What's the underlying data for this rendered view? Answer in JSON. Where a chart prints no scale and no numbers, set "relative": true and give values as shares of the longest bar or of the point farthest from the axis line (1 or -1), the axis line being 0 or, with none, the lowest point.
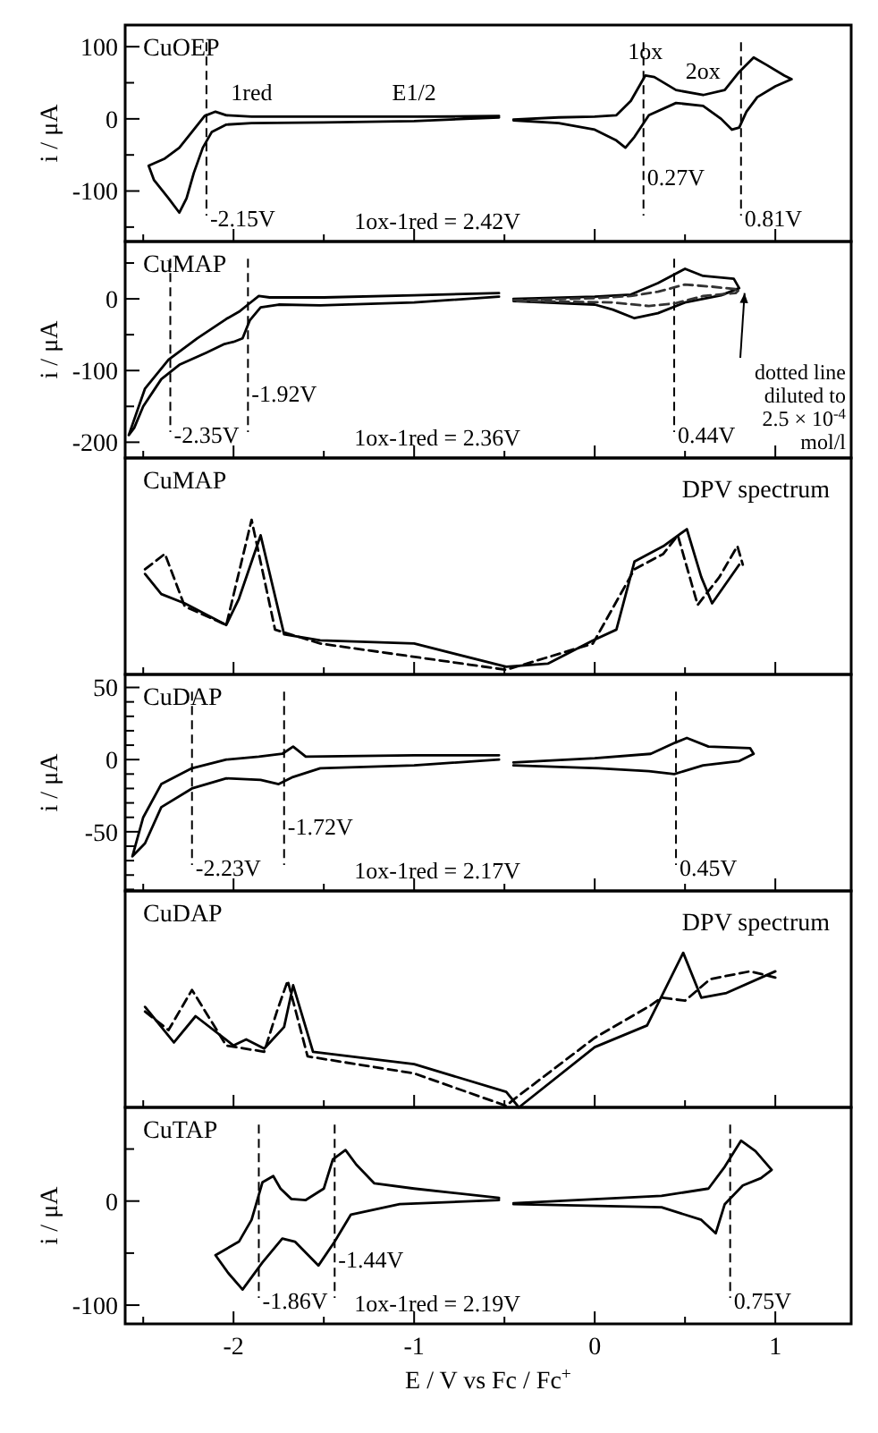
{
  "chart_data": [
    {
      "type": "line",
      "title": "CuOEP",
      "ylabel": "i / μA",
      "xlim": [
        -2.6,
        1.42
      ],
      "ylim": [
        -170,
        130
      ],
      "tick_labels": "y",
      "xticks": [
        {
          "value": -2.5,
          "label": null
        },
        -2,
        {
          "value": -1.5,
          "label": null
        },
        -1,
        {
          "value": -0.5,
          "label": null
        },
        0,
        {
          "value": 0.5,
          "label": null
        },
        1
      ],
      "yticks": [
        {
          "value": -150,
          "label": null
        },
        -100,
        {
          "value": -50,
          "label": null
        },
        0,
        {
          "value": 50,
          "label": null
        },
        100
      ],
      "series": [
        {
          "color": "#000000",
          "line_style": "solid",
          "x": [
            -0.53,
            -1.0,
            -1.5,
            -1.9,
            -2.04,
            -2.1,
            -2.16,
            -2.22,
            -2.3,
            -2.38,
            -2.47,
            -2.44,
            -2.36,
            -2.3,
            -2.26,
            -2.22,
            -2.17,
            -2.12,
            -2.04,
            -1.9,
            -1.5,
            -1.0,
            -0.53,
            -0.49,
            -0.45,
            -0.2,
            0.0,
            0.12,
            0.2,
            0.28,
            0.33,
            0.45,
            0.6,
            0.72,
            0.8,
            0.88,
            0.95,
            1.05,
            1.09,
            1.0,
            0.9,
            0.84,
            0.8,
            0.76,
            0.7,
            0.6,
            0.45,
            0.3,
            0.22,
            0.17,
            0.12,
            0.0,
            -0.2,
            -0.45
          ],
          "values": [
            4,
            3,
            3,
            3,
            5,
            10,
            4,
            -15,
            -40,
            -55,
            -65,
            -85,
            -110,
            -130,
            -110,
            -75,
            -40,
            -18,
            -8,
            -6,
            -5,
            -3,
            2,
            null,
            -1,
            2,
            3,
            5,
            25,
            60,
            58,
            40,
            33,
            40,
            65,
            85,
            75,
            60,
            55,
            45,
            30,
            10,
            -12,
            -15,
            0,
            18,
            22,
            5,
            -25,
            -40,
            -30,
            -15,
            -6,
            -2
          ]
        }
      ],
      "ref_lines": [
        {
          "axis": "x",
          "value": -2.15,
          "label": "-2.15V",
          "line_style": "dashed"
        },
        {
          "axis": "x",
          "value": 0.27,
          "label": "0.27V",
          "line_style": "dashed"
        },
        {
          "axis": "x",
          "value": 0.81,
          "label": "0.81V",
          "line_style": "dashed"
        }
      ],
      "annotations": [
        "1ox-1red = 2.42V",
        {
          "text": "1red",
          "x": -1.9,
          "y": 3
        },
        {
          "text": "E1/2",
          "x": -1.0,
          "y": 3
        },
        {
          "text": "1ox",
          "x": 0.28,
          "y": 60
        },
        {
          "text": "2ox",
          "x": 0.6,
          "y": 33
        }
      ]
    },
    {
      "type": "line",
      "title": "CuMAP",
      "ylabel": "i / μA",
      "xlim": [
        -2.6,
        1.42
      ],
      "ylim": [
        -222,
        80
      ],
      "tick_labels": "y",
      "xticks": [
        {
          "value": -2.5,
          "label": null
        },
        -2,
        {
          "value": -1.5,
          "label": null
        },
        -1,
        {
          "value": -0.5,
          "label": null
        },
        0,
        {
          "value": 0.5,
          "label": null
        },
        1
      ],
      "yticks": [
        -200,
        {
          "value": -150,
          "label": null
        },
        -100,
        {
          "value": -50,
          "label": null
        },
        0,
        {
          "value": 50,
          "label": null
        }
      ],
      "series": [
        {
          "color": "#000000",
          "line_style": "solid",
          "x": [
            -0.53,
            -1.0,
            -1.5,
            -1.8,
            -1.86,
            -1.92,
            -1.97,
            -2.04,
            -2.2,
            -2.36,
            -2.49,
            -2.58,
            -2.55,
            -2.5,
            -2.4,
            -2.3,
            -2.15,
            -2.05,
            -2.0,
            -1.95,
            -1.91,
            -1.85,
            -1.75,
            -1.52,
            -1.0,
            -0.53,
            -0.49,
            -0.45,
            0.0,
            0.2,
            0.35,
            0.5,
            0.6,
            0.77,
            0.8,
            0.7,
            0.5,
            0.35,
            0.22,
            0.1,
            0.0,
            -0.45
          ],
          "values": [
            8,
            5,
            2,
            2,
            4,
            -8,
            -18,
            -28,
            -55,
            -85,
            -125,
            -190,
            -180,
            -150,
            -112,
            -92,
            -75,
            -63,
            -60,
            -55,
            -30,
            -12,
            -8,
            -9,
            -5,
            3,
            null,
            0,
            3,
            6,
            22,
            42,
            32,
            28,
            15,
            5,
            -5,
            -20,
            -27,
            -15,
            -8,
            -3
          ]
        },
        {
          "color": "#333333",
          "line_style": "dashed",
          "x": [
            -0.45,
            0.0,
            0.2,
            0.35,
            0.5,
            0.65,
            0.8,
            0.78,
            0.6,
            0.45,
            0.3,
            0.1,
            -0.45
          ],
          "values": [
            -2,
            1,
            4,
            10,
            20,
            17,
            13,
            8,
            4,
            -6,
            -10,
            -5,
            -3
          ]
        }
      ],
      "ref_lines": [
        {
          "axis": "x",
          "value": -2.35,
          "label": "-2.35V",
          "line_style": "dashed"
        },
        {
          "axis": "x",
          "value": -1.92,
          "label": "-1.92V",
          "line_style": "dashed"
        },
        {
          "axis": "x",
          "value": 0.44,
          "label": "0.44V",
          "line_style": "dashed"
        }
      ],
      "annotations": [
        "1ox-1red = 2.36V",
        "dotted line diluted to 2.5 × 10$^{-4}$ mol/l"
      ]
    },
    {
      "type": "line",
      "title": "CuMAP",
      "subtitle": "DPV spectrum",
      "relative": true,
      "xlim": [
        -2.6,
        1.42
      ],
      "tick_labels": false,
      "xticks": [
        {
          "value": -2.5,
          "label": null
        },
        -2,
        {
          "value": -1.5,
          "label": null
        },
        -1,
        {
          "value": -0.5,
          "label": null
        },
        0,
        {
          "value": 0.5,
          "label": null
        },
        1
      ],
      "series": [
        {
          "color": "#000000",
          "line_style": "solid",
          "x": [
            -2.49,
            -2.4,
            -2.27,
            -2.04,
            -1.97,
            -1.85,
            -1.72,
            -1.52,
            -1.0,
            -0.49,
            -0.26,
            -0.01,
            0.12,
            0.22,
            0.38,
            0.51,
            0.59,
            0.65,
            0.8
          ],
          "values": [
            0.65,
            0.52,
            0.46,
            0.32,
            0.49,
            0.9,
            0.26,
            0.22,
            0.2,
            0.05,
            0.07,
            0.22,
            0.29,
            0.73,
            0.83,
            0.94,
            0.63,
            0.46,
            0.71
          ]
        },
        {
          "color": "#000000",
          "line_style": "dashed",
          "x": [
            -2.49,
            -2.38,
            -2.27,
            -2.04,
            -1.9,
            -1.77,
            -1.52,
            -0.49,
            -0.01,
            0.22,
            0.38,
            0.46,
            0.57,
            0.69,
            0.79,
            0.82
          ],
          "values": [
            0.68,
            0.78,
            0.44,
            0.32,
            1,
            0.29,
            0.2,
            0.03,
            0.2,
            0.68,
            0.78,
            0.9,
            0.45,
            0.63,
            0.83,
            0.71
          ]
        }
      ]
    },
    {
      "type": "line",
      "title": "CuDAP",
      "ylabel": "i / μA",
      "xlim": [
        -2.6,
        1.42
      ],
      "ylim": [
        -91,
        59
      ],
      "tick_labels": "y",
      "xticks": [
        {
          "value": -2.5,
          "label": null
        },
        -2,
        {
          "value": -1.5,
          "label": null
        },
        -1,
        {
          "value": -0.5,
          "label": null
        },
        0,
        {
          "value": 0.5,
          "label": null
        },
        1
      ],
      "yticks": [
        {
          "value": -90,
          "label": null
        },
        {
          "value": -80,
          "label": null
        },
        {
          "value": -70,
          "label": null
        },
        {
          "value": -60,
          "label": null
        },
        -50,
        {
          "value": -40,
          "label": null
        },
        {
          "value": -30,
          "label": null
        },
        {
          "value": -20,
          "label": null
        },
        {
          "value": -10,
          "label": null
        },
        0,
        {
          "value": 10,
          "label": null
        },
        {
          "value": 20,
          "label": null
        },
        {
          "value": 30,
          "label": null
        },
        {
          "value": 40,
          "label": null
        },
        50
      ],
      "series": [
        {
          "color": "#000000",
          "line_style": "solid",
          "x": [
            -0.53,
            -1.0,
            -1.6,
            -1.67,
            -1.73,
            -1.86,
            -2.04,
            -2.23,
            -2.4,
            -2.5,
            -2.56,
            -2.49,
            -2.4,
            -2.23,
            -2.04,
            -1.85,
            -1.75,
            -1.67,
            -1.52,
            -1.0,
            -0.53,
            -0.49,
            -0.45,
            0.0,
            0.31,
            0.45,
            0.51,
            0.63,
            0.86,
            0.88,
            0.8,
            0.6,
            0.44,
            0.3,
            0.02,
            -0.45
          ],
          "values": [
            3,
            3,
            2,
            9,
            4,
            2,
            0,
            -6,
            -17,
            -40,
            -67,
            -58,
            -33,
            -20,
            -13,
            -14,
            -17,
            -12,
            -6,
            -4,
            0,
            null,
            -2,
            1,
            4,
            12,
            15,
            9,
            8,
            4,
            -1,
            -4,
            -10,
            -8,
            -6,
            -4
          ]
        }
      ],
      "ref_lines": [
        {
          "axis": "x",
          "value": -2.23,
          "label": "-2.23V",
          "line_style": "dashed"
        },
        {
          "axis": "x",
          "value": -1.72,
          "label": "-1.72V",
          "line_style": "dashed"
        },
        {
          "axis": "x",
          "value": 0.45,
          "label": "0.45V",
          "line_style": "dashed"
        }
      ],
      "annotations": [
        "1ox-1red = 2.17V"
      ]
    },
    {
      "type": "line",
      "title": "CuDAP",
      "subtitle": "DPV spectrum",
      "relative": true,
      "xlim": [
        -2.6,
        1.42
      ],
      "tick_labels": false,
      "xticks": [
        {
          "value": -2.5,
          "label": null
        },
        -2,
        {
          "value": -1.5,
          "label": null
        },
        -1,
        {
          "value": -0.5,
          "label": null
        },
        0,
        {
          "value": 0.5,
          "label": null
        },
        1
      ],
      "series": [
        {
          "color": "#000000",
          "line_style": "solid",
          "x": [
            -2.49,
            -2.33,
            -2.21,
            -2.0,
            -1.93,
            -1.83,
            -1.72,
            -1.67,
            -1.56,
            -1.0,
            -0.49,
            -0.42,
            0.0,
            0.29,
            0.35,
            0.49,
            0.59,
            0.73,
            1.0
          ],
          "values": [
            0.65,
            0.42,
            0.59,
            0.4,
            0.44,
            0.38,
            0.52,
            0.79,
            0.36,
            0.28,
            0.1,
            0,
            0.39,
            0.53,
            0.67,
            1,
            0.71,
            0.74,
            0.88
          ]
        },
        {
          "color": "#000000",
          "line_style": "dashed",
          "x": [
            -2.49,
            -2.36,
            -2.23,
            -2.04,
            -1.83,
            -1.76,
            -1.7,
            -1.59,
            -1.0,
            -0.49,
            -0.45,
            0.0,
            0.31,
            0.37,
            0.5,
            0.64,
            0.86,
            1.0
          ],
          "values": [
            0.62,
            0.5,
            0.76,
            0.4,
            0.36,
            0.62,
            0.82,
            0.33,
            0.22,
            0.01,
            0.05,
            0.45,
            0.66,
            0.71,
            0.69,
            0.83,
            0.88,
            0.84
          ]
        }
      ]
    },
    {
      "type": "line",
      "title": "CuTAP",
      "ylabel": "i / μA",
      "xlabel": "E / V vs Fc / Fc$^{+}$",
      "xlim": [
        -2.6,
        1.42
      ],
      "ylim": [
        -118,
        90
      ],
      "xticks": [
        {
          "value": -2.5,
          "label": null
        },
        -2,
        {
          "value": -1.5,
          "label": null
        },
        -1,
        {
          "value": -0.5,
          "label": null
        },
        0,
        {
          "value": 0.5,
          "label": null
        },
        1
      ],
      "yticks": [
        -100,
        {
          "value": -50,
          "label": null
        },
        0,
        {
          "value": 50,
          "label": null
        }
      ],
      "series": [
        {
          "color": "#000000",
          "line_style": "solid",
          "x": [
            -0.53,
            -1.0,
            -1.22,
            -1.32,
            -1.38,
            -1.45,
            -1.5,
            -1.6,
            -1.68,
            -1.74,
            -1.78,
            -1.84,
            -1.9,
            -1.97,
            -2.1,
            -2.03,
            -1.95,
            -1.84,
            -1.73,
            -1.66,
            -1.53,
            -1.44,
            -1.35,
            -1.08,
            -0.53,
            -0.49,
            -0.45,
            0.37,
            0.63,
            0.72,
            0.81,
            0.89,
            0.98,
            0.92,
            0.82,
            0.72,
            0.67,
            0.59,
            0.37,
            -0.45
          ],
          "values": [
            3,
            12,
            17,
            35,
            49,
            40,
            12,
            1,
            2,
            12,
            24,
            18,
            -18,
            -39,
            -52,
            -69,
            -85,
            -59,
            -36,
            -39,
            -62,
            -39,
            -13,
            -3,
            1,
            null,
            -2,
            5,
            12,
            33,
            58,
            48,
            30,
            22,
            15,
            -3,
            -31,
            -18,
            -6,
            -3
          ]
        }
      ],
      "ref_lines": [
        {
          "axis": "x",
          "value": -1.86,
          "label": "-1.86V",
          "line_style": "dashed"
        },
        {
          "axis": "x",
          "value": -1.44,
          "label": "-1.44V",
          "line_style": "dashed"
        },
        {
          "axis": "x",
          "value": 0.75,
          "label": "0.75V",
          "line_style": "dashed"
        }
      ],
      "annotations": [
        "1ox-1red = 2.19V"
      ]
    }
  ]
}
